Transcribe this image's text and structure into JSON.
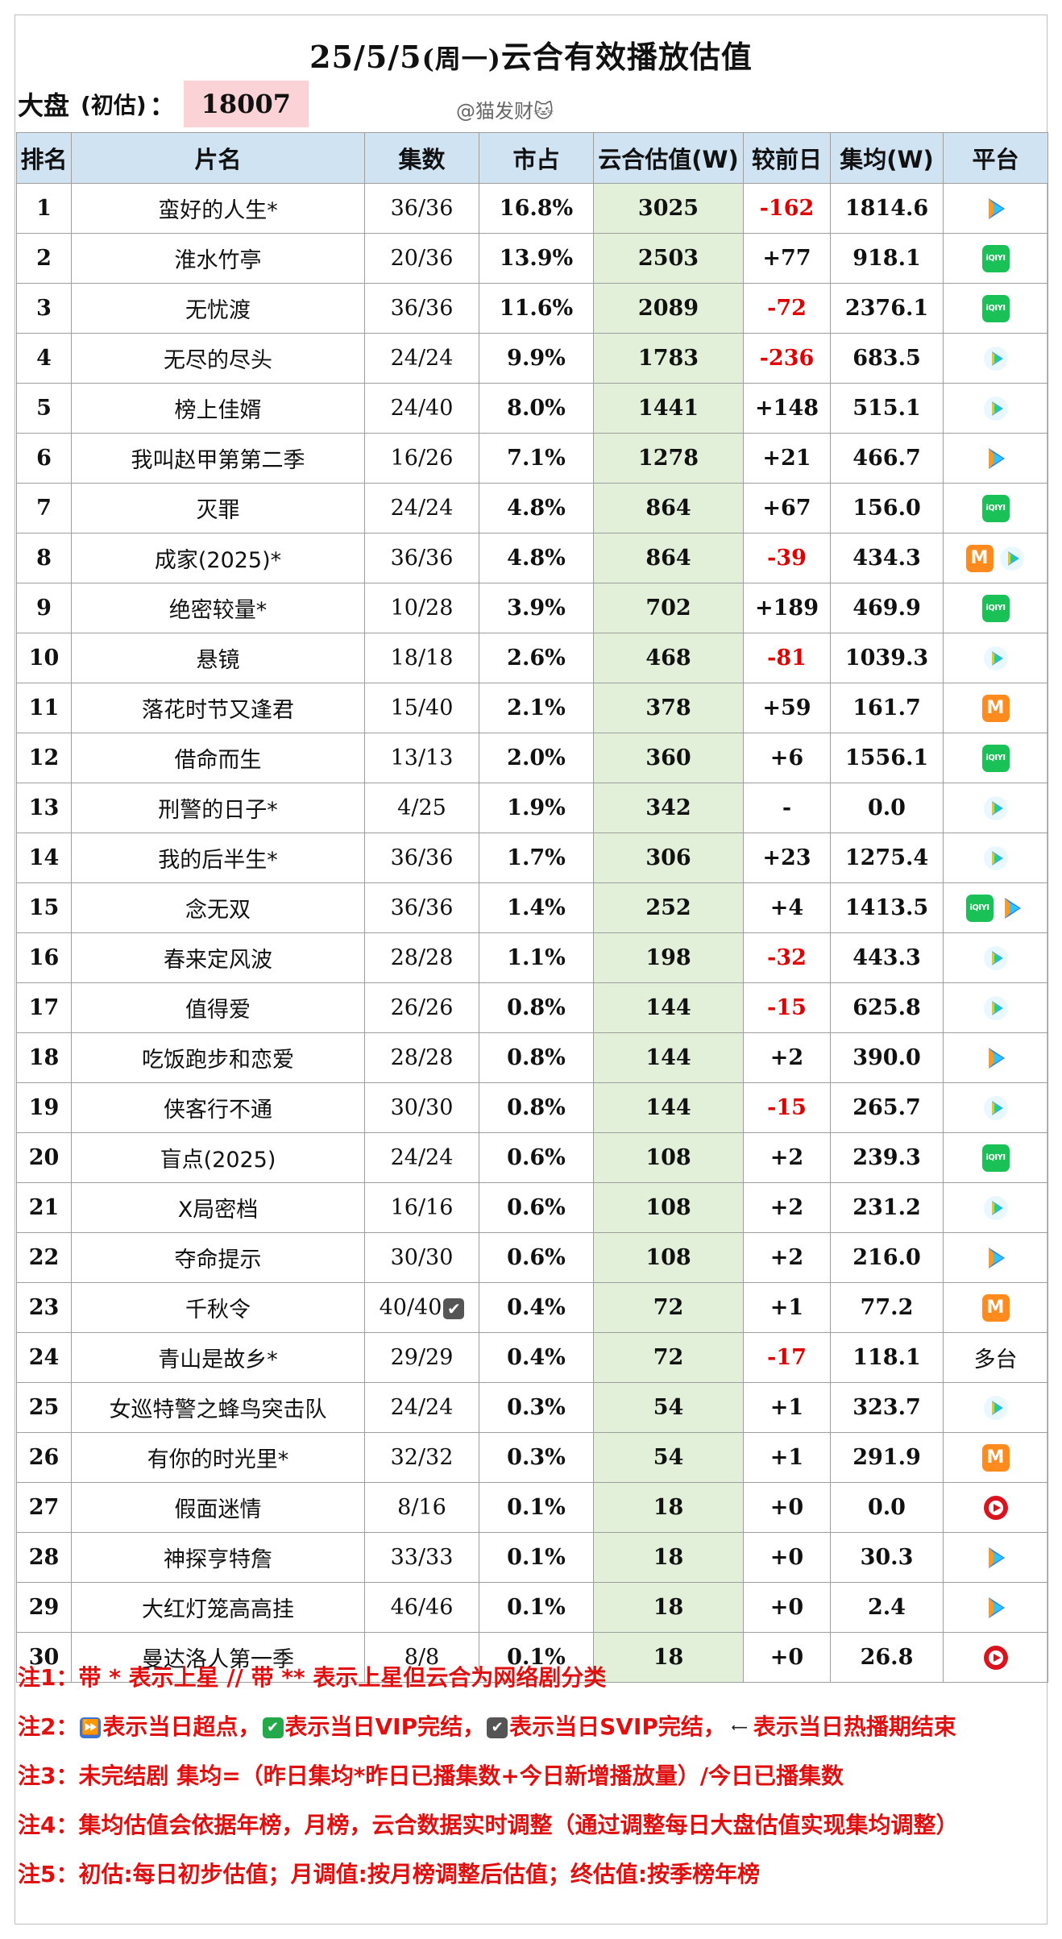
{
  "header": {
    "title_main": "25/5/5",
    "title_paren": "(周一)",
    "title_rest": "云合有效播放估值",
    "dapan_label": "大盘",
    "dapan_note": "(初估)",
    "dapan_colon": "：",
    "dapan_value": "18007",
    "watermark": "@猫发财🐱"
  },
  "columns": [
    "排名",
    "片名",
    "集数",
    "市占",
    "云合估值(W)",
    "较前日",
    "集均(W)",
    "平台"
  ],
  "rows": [
    {
      "rank": "1",
      "name": "蛮好的人生*",
      "episodes": "36/36",
      "share": "16.8%",
      "estimate": "3025",
      "change": "-162",
      "avg": "1814.6",
      "platform": [
        "tencent"
      ]
    },
    {
      "rank": "2",
      "name": "淮水竹亭",
      "episodes": "20/36",
      "share": "13.9%",
      "estimate": "2503",
      "change": "+77",
      "avg": "918.1",
      "platform": [
        "iqiyi"
      ]
    },
    {
      "rank": "3",
      "name": "无忧渡",
      "episodes": "36/36",
      "share": "11.6%",
      "estimate": "2089",
      "change": "-72",
      "avg": "2376.1",
      "platform": [
        "iqiyi"
      ]
    },
    {
      "rank": "4",
      "name": "无尽的尽头",
      "episodes": "24/24",
      "share": "9.9%",
      "estimate": "1783",
      "change": "-236",
      "avg": "683.5",
      "platform": [
        "youku"
      ]
    },
    {
      "rank": "5",
      "name": "榜上佳婿",
      "episodes": "24/40",
      "share": "8.0%",
      "estimate": "1441",
      "change": "+148",
      "avg": "515.1",
      "platform": [
        "youku"
      ]
    },
    {
      "rank": "6",
      "name": "我叫赵甲第第二季",
      "episodes": "16/26",
      "share": "7.1%",
      "estimate": "1278",
      "change": "+21",
      "avg": "466.7",
      "platform": [
        "tencent"
      ]
    },
    {
      "rank": "7",
      "name": "灭罪",
      "episodes": "24/24",
      "share": "4.8%",
      "estimate": "864",
      "change": "+67",
      "avg": "156.0",
      "platform": [
        "iqiyi"
      ]
    },
    {
      "rank": "8",
      "name": "成家(2025)*",
      "episodes": "36/36",
      "share": "4.8%",
      "estimate": "864",
      "change": "-39",
      "avg": "434.3",
      "platform": [
        "mango",
        "youku"
      ]
    },
    {
      "rank": "9",
      "name": "绝密较量*",
      "episodes": "10/28",
      "share": "3.9%",
      "estimate": "702",
      "change": "+189",
      "avg": "469.9",
      "platform": [
        "iqiyi"
      ]
    },
    {
      "rank": "10",
      "name": "悬镜",
      "episodes": "18/18",
      "share": "2.6%",
      "estimate": "468",
      "change": "-81",
      "avg": "1039.3",
      "platform": [
        "youku"
      ]
    },
    {
      "rank": "11",
      "name": "落花时节又逢君",
      "episodes": "15/40",
      "share": "2.1%",
      "estimate": "378",
      "change": "+59",
      "avg": "161.7",
      "platform": [
        "mango"
      ]
    },
    {
      "rank": "12",
      "name": "借命而生",
      "episodes": "13/13",
      "share": "2.0%",
      "estimate": "360",
      "change": "+6",
      "avg": "1556.1",
      "platform": [
        "iqiyi"
      ]
    },
    {
      "rank": "13",
      "name": "刑警的日子*",
      "episodes": "4/25",
      "share": "1.9%",
      "estimate": "342",
      "change": "-",
      "avg": "0.0",
      "platform": [
        "youku"
      ]
    },
    {
      "rank": "14",
      "name": "我的后半生*",
      "episodes": "36/36",
      "share": "1.7%",
      "estimate": "306",
      "change": "+23",
      "avg": "1275.4",
      "platform": [
        "youku"
      ]
    },
    {
      "rank": "15",
      "name": "念无双",
      "episodes": "36/36",
      "share": "1.4%",
      "estimate": "252",
      "change": "+4",
      "avg": "1413.5",
      "platform": [
        "iqiyi",
        "tencent"
      ]
    },
    {
      "rank": "16",
      "name": "春来定风波",
      "episodes": "28/28",
      "share": "1.1%",
      "estimate": "198",
      "change": "-32",
      "avg": "443.3",
      "platform": [
        "youku"
      ]
    },
    {
      "rank": "17",
      "name": "值得爱",
      "episodes": "26/26",
      "share": "0.8%",
      "estimate": "144",
      "change": "-15",
      "avg": "625.8",
      "platform": [
        "youku"
      ]
    },
    {
      "rank": "18",
      "name": "吃饭跑步和恋爱",
      "episodes": "28/28",
      "share": "0.8%",
      "estimate": "144",
      "change": "+2",
      "avg": "390.0",
      "platform": [
        "tencent"
      ]
    },
    {
      "rank": "19",
      "name": "侠客行不通",
      "episodes": "30/30",
      "share": "0.8%",
      "estimate": "144",
      "change": "-15",
      "avg": "265.7",
      "platform": [
        "youku"
      ]
    },
    {
      "rank": "20",
      "name": "盲点(2025)",
      "episodes": "24/24",
      "share": "0.6%",
      "estimate": "108",
      "change": "+2",
      "avg": "239.3",
      "platform": [
        "iqiyi"
      ]
    },
    {
      "rank": "21",
      "name": "X局密档",
      "episodes": "16/16",
      "share": "0.6%",
      "estimate": "108",
      "change": "+2",
      "avg": "231.2",
      "platform": [
        "youku"
      ]
    },
    {
      "rank": "22",
      "name": "夺命提示",
      "episodes": "30/30",
      "share": "0.6%",
      "estimate": "108",
      "change": "+2",
      "avg": "216.0",
      "platform": [
        "tencent"
      ]
    },
    {
      "rank": "23",
      "name": "千秋令",
      "episodes": "40/40",
      "episodes_mark": "✔",
      "share": "0.4%",
      "estimate": "72",
      "change": "+1",
      "avg": "77.2",
      "platform": [
        "mango"
      ]
    },
    {
      "rank": "24",
      "name": "青山是故乡*",
      "episodes": "29/29",
      "share": "0.4%",
      "estimate": "72",
      "change": "-17",
      "avg": "118.1",
      "platform": [],
      "platform_text": "多台"
    },
    {
      "rank": "25",
      "name": "女巡特警之蜂鸟突击队",
      "episodes": "24/24",
      "share": "0.3%",
      "estimate": "54",
      "change": "+1",
      "avg": "323.7",
      "platform": [
        "youku"
      ]
    },
    {
      "rank": "26",
      "name": "有你的时光里*",
      "episodes": "32/32",
      "share": "0.3%",
      "estimate": "54",
      "change": "+1",
      "avg": "291.9",
      "platform": [
        "mango"
      ]
    },
    {
      "rank": "27",
      "name": "假面迷情",
      "episodes": "8/16",
      "share": "0.1%",
      "estimate": "18",
      "change": "+0",
      "avg": "0.0",
      "platform": [
        "red"
      ]
    },
    {
      "rank": "28",
      "name": "神探亨特詹",
      "episodes": "33/33",
      "share": "0.1%",
      "estimate": "18",
      "change": "+0",
      "avg": "30.3",
      "platform": [
        "tencent"
      ]
    },
    {
      "rank": "29",
      "name": "大红灯笼高高挂",
      "episodes": "46/46",
      "share": "0.1%",
      "estimate": "18",
      "change": "+0",
      "avg": "2.4",
      "platform": [
        "tencent"
      ]
    },
    {
      "rank": "30",
      "name": "曼达洛人第一季",
      "episodes": "8/8",
      "share": "0.1%",
      "estimate": "18",
      "change": "+0",
      "avg": "26.8",
      "platform": [
        "red"
      ]
    }
  ],
  "notes": {
    "n1": "注1：带 * 表示上星 // 带 ** 表示上星但云合为网络剧分类",
    "n2_label": "注2：",
    "n2_a": "表示当日超点，",
    "n2_b": "表示当日VIP完结，",
    "n2_c": "表示当日SVIP完结，",
    "n2_d": "表示当日热播期结束",
    "n3": "注3：未完结剧 集均=（昨日集均*昨日已播集数+今日新增播放量）/今日已播集数",
    "n4": "注4：集均估值会依据年榜，月榜，云合数据实时调整（通过调整每日大盘估值实现集均调整）",
    "n5": "注5：初估:每日初步估值；月调值:按月榜调整后估值；终估值:按季榜年榜"
  },
  "colors": {
    "header_bg": "#cfe3f3",
    "estimate_bg": "#e2efd9",
    "negative": "#e00000",
    "note_red": "#e01010",
    "dapan_bg": "#fbd3d6"
  }
}
